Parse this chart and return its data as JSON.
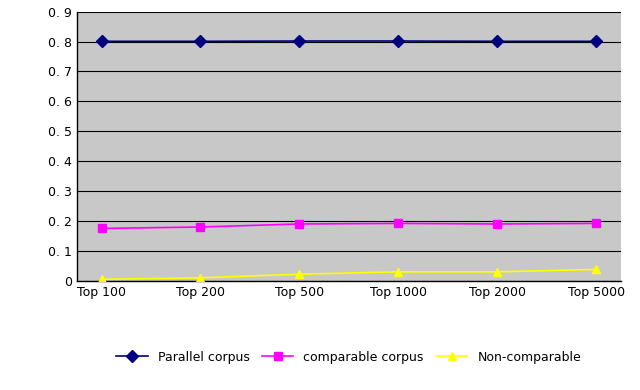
{
  "categories": [
    "Top 100",
    "Top 200",
    "Top 500",
    "Top 1000",
    "Top 2000",
    "Top 5000"
  ],
  "parallel": [
    0.801,
    0.801,
    0.802,
    0.802,
    0.801,
    0.801
  ],
  "comparable": [
    0.175,
    0.18,
    0.19,
    0.192,
    0.19,
    0.192
  ],
  "non_comparable": [
    0.005,
    0.01,
    0.022,
    0.03,
    0.03,
    0.038
  ],
  "parallel_color": "#000080",
  "comparable_color": "#FF00FF",
  "non_comparable_color": "#FFFF00",
  "background_color": "#C8C8C8",
  "fig_background": "#FFFFFF",
  "ylim": [
    0,
    0.9
  ],
  "ytick_values": [
    0,
    0.1,
    0.2,
    0.3,
    0.4,
    0.5,
    0.6,
    0.7,
    0.8,
    0.9
  ],
  "ytick_labels": [
    "0",
    "0. 1",
    "0. 2",
    "0. 3",
    "0. 4",
    "0. 5",
    "0. 6",
    "0. 7",
    "0. 8",
    "0. 9"
  ],
  "legend_labels": [
    "Parallel corpus",
    "comparable corpus",
    "Non-comparable"
  ],
  "grid_color": "#000000",
  "line_width": 1.2,
  "marker_size": 6,
  "tick_fontsize": 9,
  "legend_fontsize": 9
}
